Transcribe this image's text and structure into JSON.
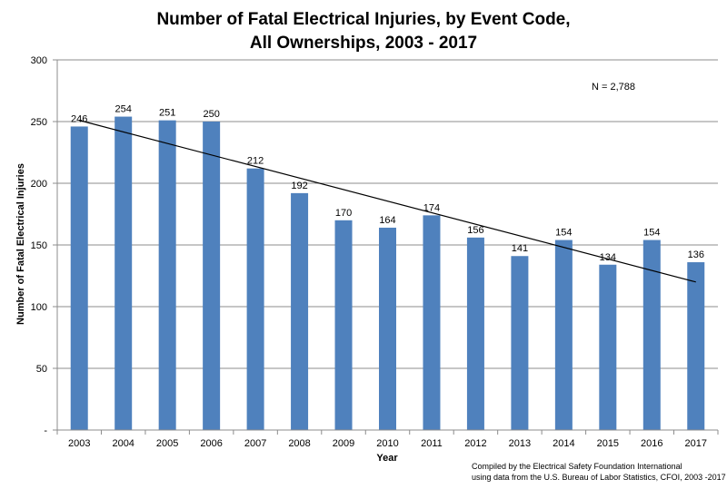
{
  "chart_data": {
    "type": "bar",
    "title_line1": "Number of Fatal Electrical Injuries, by Event Code,",
    "title_line2": "All Ownerships, 2003 - 2017",
    "xlabel": "Year",
    "ylabel": "Number of Fatal Electrical Injuries",
    "ylim": [
      0,
      300
    ],
    "yticks": [
      0,
      50,
      100,
      150,
      200,
      250,
      300
    ],
    "ytick_labels": [
      "-",
      "50",
      "100",
      "150",
      "200",
      "250",
      "300"
    ],
    "grid": true,
    "categories": [
      "2003",
      "2004",
      "2005",
      "2006",
      "2007",
      "2008",
      "2009",
      "2010",
      "2011",
      "2012",
      "2013",
      "2014",
      "2015",
      "2016",
      "2017"
    ],
    "values": [
      246,
      254,
      251,
      250,
      212,
      192,
      170,
      164,
      174,
      156,
      141,
      154,
      134,
      154,
      136
    ],
    "trendline": {
      "start": 251,
      "end": 120
    },
    "bar_color": "#4F81BD",
    "annotation": "N = 2,788",
    "credit_line1": "Compiled by the Electrical Safety Foundation International",
    "credit_line2": "using data from the U.S. Bureau of Labor Statistics, CFOI, 2003 -2017"
  }
}
